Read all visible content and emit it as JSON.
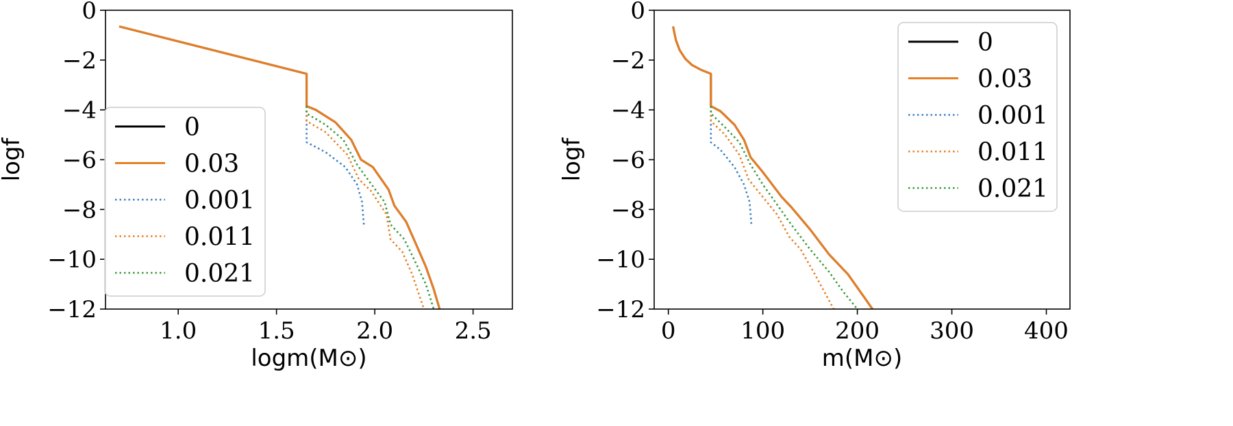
{
  "chart_data": [
    {
      "type": "line",
      "ylabel": "logf",
      "xlabel": "logm(M⊙)",
      "xlim": [
        0.63,
        2.7
      ],
      "ylim": [
        -12,
        0
      ],
      "xticks": [
        1.0,
        1.5,
        2.0,
        2.5
      ],
      "xtick_labels": [
        "1.0",
        "1.5",
        "2.0",
        "2.5"
      ],
      "yticks": [
        0,
        -2,
        -4,
        -6,
        -8,
        -10,
        -12
      ],
      "ytick_labels": [
        "0",
        "−2",
        "−4",
        "−6",
        "−8",
        "−10",
        "−12"
      ],
      "legend_position": "center-left",
      "series": [
        {
          "name": "0",
          "color": "#000000",
          "style": "solid",
          "points": [
            [
              0.7,
              -0.65
            ],
            [
              1.653,
              -2.55
            ],
            [
              1.653,
              -3.85
            ],
            [
              1.7,
              -4.0
            ],
            [
              1.8,
              -4.5
            ],
            [
              1.88,
              -5.2
            ],
            [
              1.93,
              -6.0
            ],
            [
              1.99,
              -6.3
            ],
            [
              2.07,
              -7.2
            ],
            [
              2.1,
              -7.85
            ],
            [
              2.16,
              -8.5
            ],
            [
              2.21,
              -9.4
            ],
            [
              2.26,
              -10.3
            ],
            [
              2.3,
              -11.2
            ],
            [
              2.33,
              -12.0
            ]
          ]
        },
        {
          "name": "0.03",
          "color": "#e67e22",
          "style": "solid",
          "points": [
            [
              0.7,
              -0.65
            ],
            [
              1.653,
              -2.55
            ],
            [
              1.653,
              -3.85
            ],
            [
              1.7,
              -4.0
            ],
            [
              1.8,
              -4.5
            ],
            [
              1.88,
              -5.2
            ],
            [
              1.93,
              -6.0
            ],
            [
              1.99,
              -6.3
            ],
            [
              2.07,
              -7.2
            ],
            [
              2.1,
              -7.85
            ],
            [
              2.16,
              -8.5
            ],
            [
              2.21,
              -9.4
            ],
            [
              2.26,
              -10.3
            ],
            [
              2.3,
              -11.2
            ],
            [
              2.33,
              -12.0
            ]
          ]
        },
        {
          "name": "0.001",
          "color": "#3a7fc0",
          "style": "dotted",
          "points": [
            [
              1.653,
              -3.85
            ],
            [
              1.653,
              -5.3
            ],
            [
              1.75,
              -5.7
            ],
            [
              1.85,
              -6.3
            ],
            [
              1.91,
              -7.0
            ],
            [
              1.935,
              -7.7
            ],
            [
              1.945,
              -8.65
            ]
          ]
        },
        {
          "name": "0.011",
          "color": "#e67e22",
          "style": "dotted",
          "points": [
            [
              1.653,
              -3.85
            ],
            [
              1.653,
              -4.45
            ],
            [
              1.75,
              -4.9
            ],
            [
              1.86,
              -5.8
            ],
            [
              1.92,
              -6.8
            ],
            [
              1.98,
              -7.25
            ],
            [
              2.06,
              -8.2
            ],
            [
              2.08,
              -9.2
            ],
            [
              2.14,
              -9.7
            ],
            [
              2.19,
              -10.6
            ],
            [
              2.25,
              -12.0
            ]
          ]
        },
        {
          "name": "0.021",
          "color": "#3a9a3a",
          "style": "dotted",
          "points": [
            [
              1.653,
              -3.85
            ],
            [
              1.653,
              -4.15
            ],
            [
              1.75,
              -4.6
            ],
            [
              1.84,
              -5.2
            ],
            [
              1.91,
              -6.2
            ],
            [
              1.96,
              -6.75
            ],
            [
              2.05,
              -7.7
            ],
            [
              2.08,
              -8.6
            ],
            [
              2.15,
              -9.2
            ],
            [
              2.2,
              -10.0
            ],
            [
              2.26,
              -11.0
            ],
            [
              2.3,
              -12.0
            ]
          ]
        }
      ]
    },
    {
      "type": "line",
      "ylabel": "logf",
      "xlabel": "m(M⊙)",
      "xlim": [
        -15,
        425
      ],
      "ylim": [
        -12,
        0
      ],
      "xticks": [
        0,
        100,
        200,
        300,
        400
      ],
      "xtick_labels": [
        "0",
        "100",
        "200",
        "300",
        "400"
      ],
      "yticks": [
        0,
        -2,
        -4,
        -6,
        -8,
        -10,
        -12
      ],
      "ytick_labels": [
        "0",
        "−2",
        "−4",
        "−6",
        "−8",
        "−10",
        "−12"
      ],
      "legend_position": "upper-right",
      "series": [
        {
          "name": "0",
          "color": "#000000",
          "style": "solid",
          "points": [
            [
              5,
              -0.65
            ],
            [
              8,
              -1.2
            ],
            [
              12,
              -1.6
            ],
            [
              18,
              -1.95
            ],
            [
              25,
              -2.2
            ],
            [
              35,
              -2.4
            ],
            [
              45,
              -2.55
            ],
            [
              45,
              -3.85
            ],
            [
              55,
              -4.05
            ],
            [
              70,
              -4.6
            ],
            [
              80,
              -5.2
            ],
            [
              87,
              -5.9
            ],
            [
              100,
              -6.5
            ],
            [
              120,
              -7.5
            ],
            [
              130,
              -7.9
            ],
            [
              150,
              -8.8
            ],
            [
              170,
              -9.8
            ],
            [
              190,
              -10.6
            ],
            [
              205,
              -11.4
            ],
            [
              216,
              -12.0
            ]
          ]
        },
        {
          "name": "0.03",
          "color": "#e67e22",
          "style": "solid",
          "points": [
            [
              5,
              -0.65
            ],
            [
              8,
              -1.2
            ],
            [
              12,
              -1.6
            ],
            [
              18,
              -1.95
            ],
            [
              25,
              -2.2
            ],
            [
              35,
              -2.4
            ],
            [
              45,
              -2.55
            ],
            [
              45,
              -3.85
            ],
            [
              55,
              -4.05
            ],
            [
              70,
              -4.6
            ],
            [
              80,
              -5.2
            ],
            [
              87,
              -5.9
            ],
            [
              100,
              -6.5
            ],
            [
              120,
              -7.5
            ],
            [
              130,
              -7.9
            ],
            [
              150,
              -8.8
            ],
            [
              170,
              -9.8
            ],
            [
              190,
              -10.6
            ],
            [
              205,
              -11.4
            ],
            [
              216,
              -12.0
            ]
          ]
        },
        {
          "name": "0.001",
          "color": "#3a7fc0",
          "style": "dotted",
          "points": [
            [
              45,
              -3.85
            ],
            [
              45,
              -5.3
            ],
            [
              55,
              -5.6
            ],
            [
              70,
              -6.3
            ],
            [
              80,
              -7.0
            ],
            [
              86,
              -7.7
            ],
            [
              88,
              -8.65
            ]
          ]
        },
        {
          "name": "0.011",
          "color": "#e67e22",
          "style": "dotted",
          "points": [
            [
              45,
              -3.85
            ],
            [
              45,
              -4.45
            ],
            [
              60,
              -5.0
            ],
            [
              75,
              -5.8
            ],
            [
              85,
              -6.8
            ],
            [
              100,
              -7.5
            ],
            [
              115,
              -8.2
            ],
            [
              128,
              -9.1
            ],
            [
              140,
              -9.6
            ],
            [
              155,
              -10.6
            ],
            [
              175,
              -12.0
            ]
          ]
        },
        {
          "name": "0.021",
          "color": "#3a9a3a",
          "style": "dotted",
          "points": [
            [
              45,
              -3.85
            ],
            [
              45,
              -4.15
            ],
            [
              60,
              -4.7
            ],
            [
              75,
              -5.3
            ],
            [
              87,
              -6.2
            ],
            [
              100,
              -7.0
            ],
            [
              115,
              -7.8
            ],
            [
              130,
              -8.6
            ],
            [
              150,
              -9.6
            ],
            [
              170,
              -10.5
            ],
            [
              185,
              -11.3
            ],
            [
              200,
              -12.0
            ]
          ]
        }
      ]
    }
  ]
}
